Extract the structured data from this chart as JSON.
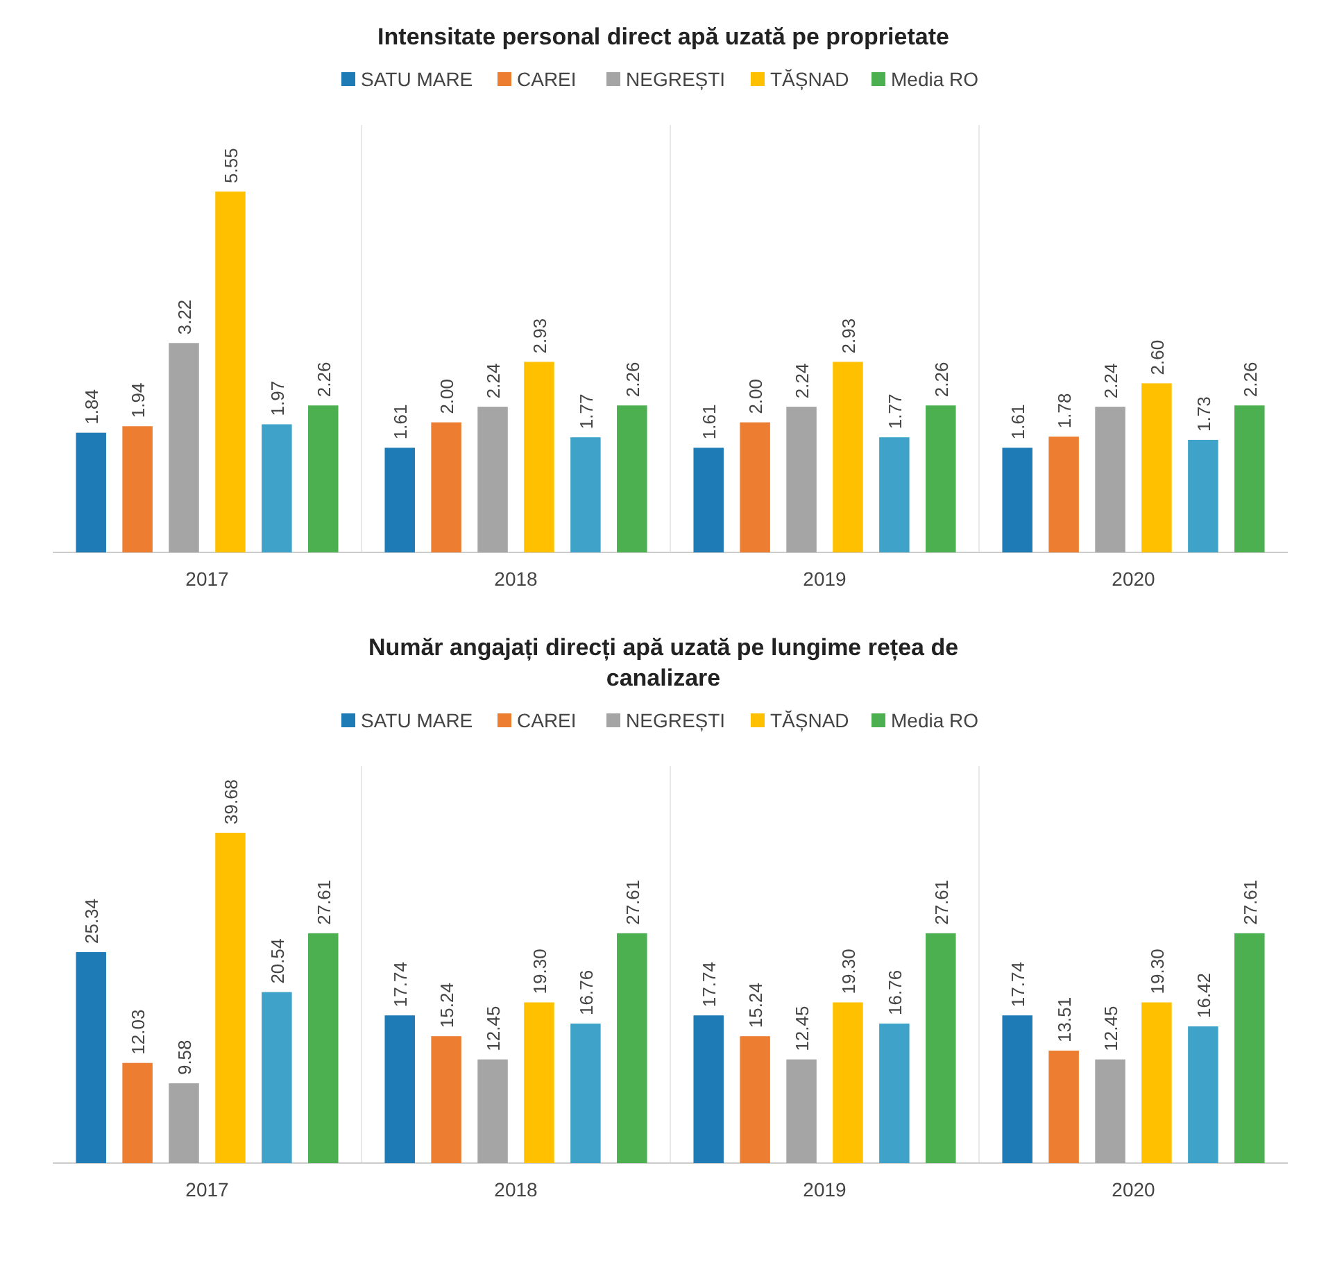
{
  "chart_data": [
    {
      "type": "bar",
      "title": "Intensitate personal direct apă uzată pe proprietate",
      "categories": [
        "2017",
        "2018",
        "2019",
        "2020"
      ],
      "legend": "top",
      "series": [
        {
          "name": "SATU MARE",
          "color": "#1f7bb6",
          "values": [
            1.84,
            1.61,
            1.61,
            1.61
          ],
          "value_labels": [
            "1.84",
            "1.61",
            "1.61",
            "1.61"
          ]
        },
        {
          "name": "CAREI",
          "color": "#ed7d31",
          "values": [
            1.94,
            2.0,
            2.0,
            1.78
          ],
          "value_labels": [
            "1.94",
            "2.00",
            "2.00",
            "1.78"
          ]
        },
        {
          "name": "NEGREȘTI",
          "color": "#a5a5a5",
          "values": [
            3.22,
            2.24,
            2.24,
            2.24
          ],
          "value_labels": [
            "3.22",
            "2.24",
            "2.24",
            "2.24"
          ]
        },
        {
          "name": "TĂȘNAD",
          "color": "#ffc000",
          "values": [
            5.55,
            2.93,
            2.93,
            2.6
          ],
          "value_labels": [
            "5.55",
            "2.93",
            "2.93",
            "2.60"
          ]
        },
        {
          "color": "#3fa3c9",
          "values": [
            1.97,
            1.77,
            1.77,
            1.73
          ],
          "value_labels": [
            "1.97",
            "1.77",
            "1.77",
            "1.73"
          ]
        },
        {
          "name": "Media RO",
          "color": "#4caf50",
          "values": [
            2.26,
            2.26,
            2.26,
            2.26
          ],
          "value_labels": [
            "2.26",
            "2.26",
            "2.26",
            "2.26"
          ]
        }
      ]
    },
    {
      "type": "bar",
      "title": "Număr angajați direcți apă uzată pe lungime rețea de canalizare",
      "categories": [
        "2017",
        "2018",
        "2019",
        "2020"
      ],
      "legend": "top",
      "series": [
        {
          "name": "SATU MARE",
          "color": "#1f7bb6",
          "values": [
            25.34,
            17.74,
            17.74,
            17.74
          ],
          "value_labels": [
            "25.34",
            "17.74",
            "17.74",
            "17.74"
          ]
        },
        {
          "name": "CAREI",
          "color": "#ed7d31",
          "values": [
            12.03,
            15.24,
            15.24,
            13.51
          ],
          "value_labels": [
            "12.03",
            "15.24",
            "15.24",
            "13.51"
          ]
        },
        {
          "name": "NEGREȘTI",
          "color": "#a5a5a5",
          "values": [
            9.58,
            12.45,
            12.45,
            12.45
          ],
          "value_labels": [
            "9.58",
            "12.45",
            "12.45",
            "12.45"
          ]
        },
        {
          "name": "TĂȘNAD",
          "color": "#ffc000",
          "values": [
            39.68,
            19.3,
            19.3,
            19.3
          ],
          "value_labels": [
            "39.68",
            "19.30",
            "19.30",
            "19.30"
          ]
        },
        {
          "color": "#3fa3c9",
          "values": [
            20.54,
            16.76,
            16.76,
            16.42
          ],
          "value_labels": [
            "20.54",
            "16.76",
            "16.76",
            "16.42"
          ]
        },
        {
          "name": "Media RO",
          "color": "#4caf50",
          "values": [
            27.61,
            27.61,
            27.61,
            27.61
          ],
          "value_labels": [
            "27.61",
            "27.61",
            "27.61",
            "27.61"
          ]
        }
      ]
    }
  ]
}
